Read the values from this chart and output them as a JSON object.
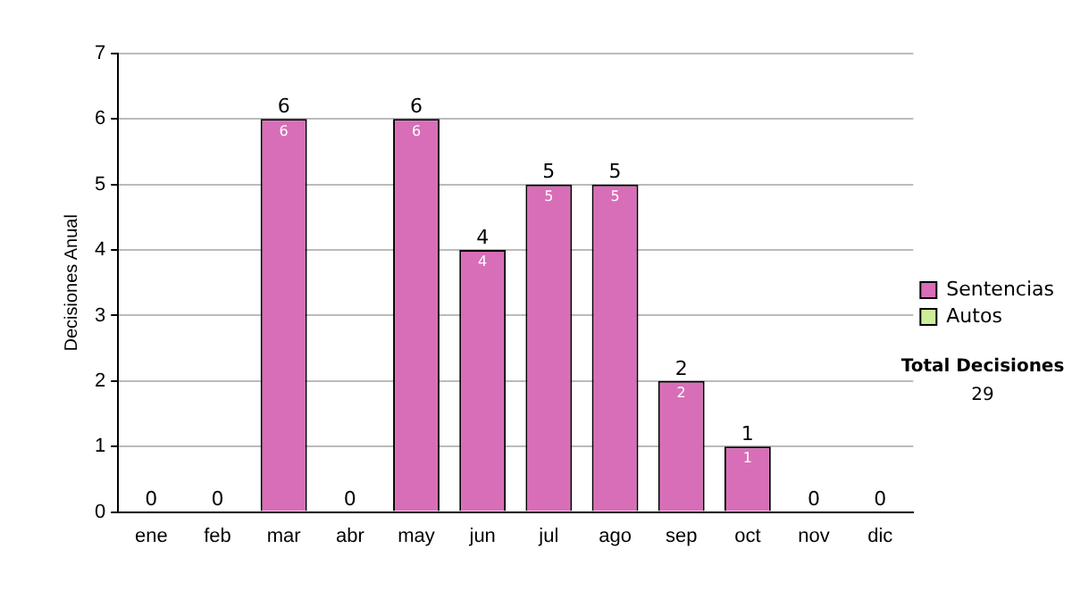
{
  "chart_data": {
    "type": "bar",
    "ylabel": "Decisiones Anual",
    "categories": [
      "ene",
      "feb",
      "mar",
      "abr",
      "may",
      "jun",
      "jul",
      "ago",
      "sep",
      "oct",
      "nov",
      "dic"
    ],
    "series": [
      {
        "name": "Sentencias",
        "color": "#d96eb8",
        "values": [
          0,
          0,
          6,
          0,
          6,
          4,
          5,
          5,
          2,
          1,
          0,
          0
        ],
        "value_labels": [
          null,
          null,
          "6",
          null,
          "6",
          "4",
          "5",
          "5",
          "2",
          "1",
          null,
          null
        ]
      },
      {
        "name": "Autos",
        "color": "#ccee99",
        "values": [
          0,
          0,
          0,
          0,
          0,
          0,
          0,
          0,
          0,
          0,
          0,
          0
        ]
      }
    ],
    "stacked": true,
    "totals": [
      "0",
      "0",
      "6",
      "0",
      "6",
      "4",
      "5",
      "5",
      "2",
      "1",
      "0",
      "0"
    ],
    "ylim": [
      0,
      7
    ],
    "yticks": [
      0,
      1,
      2,
      3,
      4,
      5,
      6,
      7
    ],
    "grid": "y",
    "legend": "right",
    "annotations": [
      "Total Decisiones",
      "29"
    ]
  }
}
